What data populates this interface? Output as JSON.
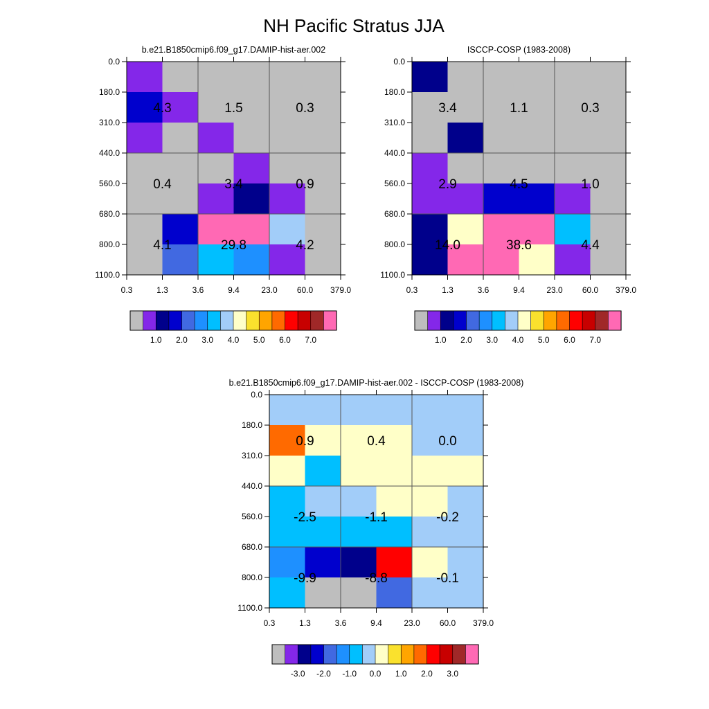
{
  "title": "NH Pacific Stratus JJA",
  "chart_data": [
    {
      "type": "heatmap",
      "id": "model",
      "title": "b.e21.B1850cmip6.f09_g17.DAMIP-hist-aer.002",
      "xlabel": "",
      "ylabel": "",
      "x_ticks": [
        "0.3",
        "1.3",
        "3.6",
        "9.4",
        "23.0",
        "60.0",
        "379.0"
      ],
      "y_ticks": [
        "0.0",
        "180.0",
        "310.0",
        "440.0",
        "560.0",
        "680.0",
        "800.0",
        "1100.0"
      ],
      "cell_colors": [
        [
          "#8427E9",
          "#BEBEBE",
          "#BEBEBE",
          "#BEBEBE",
          "#BEBEBE",
          "#BEBEBE"
        ],
        [
          "#0000CD",
          "#8427E9",
          "#BEBEBE",
          "#BEBEBE",
          "#BEBEBE",
          "#BEBEBE"
        ],
        [
          "#8427E9",
          "#BEBEBE",
          "#8427E9",
          "#BEBEBE",
          "#BEBEBE",
          "#BEBEBE"
        ],
        [
          "#BEBEBE",
          "#BEBEBE",
          "#BEBEBE",
          "#8427E9",
          "#BEBEBE",
          "#BEBEBE"
        ],
        [
          "#BEBEBE",
          "#BEBEBE",
          "#8427E9",
          "#00008B",
          "#8427E9",
          "#BEBEBE"
        ],
        [
          "#BEBEBE",
          "#0000CD",
          "#FF69B4",
          "#FF69B4",
          "#A2CDF9",
          "#BEBEBE"
        ],
        [
          "#BEBEBE",
          "#4169E1",
          "#00BFFF",
          "#1E90FF",
          "#8427E9",
          "#BEBEBE"
        ]
      ],
      "cell_values": [
        {
          "label": "4.3",
          "value": 4.3,
          "x": "0.3-3.6",
          "y": "180.0-440.0"
        },
        {
          "label": "1.5",
          "value": 1.5,
          "x": "3.6-23.0",
          "y": "180.0-440.0"
        },
        {
          "label": "0.3",
          "value": 0.3,
          "x": "23.0-379.0",
          "y": "180.0-440.0"
        },
        {
          "label": "0.4",
          "value": 0.4,
          "x": "0.3-3.6",
          "y": "440.0-680.0"
        },
        {
          "label": "3.4",
          "value": 3.4,
          "x": "3.6-23.0",
          "y": "440.0-680.0"
        },
        {
          "label": "0.9",
          "value": 0.9,
          "x": "23.0-379.0",
          "y": "440.0-680.0"
        },
        {
          "label": "4.1",
          "value": 4.1,
          "x": "0.3-3.6",
          "y": "680.0-1100.0"
        },
        {
          "label": "29.8",
          "value": 29.8,
          "x": "3.6-23.0",
          "y": "680.0-1100.0"
        },
        {
          "label": "4.2",
          "value": 4.2,
          "x": "23.0-379.0",
          "y": "680.0-1100.0"
        }
      ],
      "colorbar": {
        "colors": [
          "#BEBEBE",
          "#8427E9",
          "#00008B",
          "#0000CD",
          "#4169E1",
          "#1E90FF",
          "#00BFFF",
          "#A2CDF9",
          "#FFFFC8",
          "#FAE12D",
          "#FFA500",
          "#FF6A00",
          "#FF0000",
          "#C80000",
          "#A02828",
          "#FF69B4"
        ],
        "labels": [
          "1.0",
          "2.0",
          "3.0",
          "4.0",
          "5.0",
          "6.0",
          "7.0"
        ]
      }
    },
    {
      "type": "heatmap",
      "id": "obs",
      "title": "ISCCP-COSP (1983-2008)",
      "xlabel": "",
      "ylabel": "",
      "x_ticks": [
        "0.3",
        "1.3",
        "3.6",
        "9.4",
        "23.0",
        "60.0",
        "379.0"
      ],
      "y_ticks": [
        "0.0",
        "180.0",
        "310.0",
        "440.0",
        "560.0",
        "680.0",
        "800.0",
        "1100.0"
      ],
      "cell_colors": [
        [
          "#00008B",
          "#BEBEBE",
          "#BEBEBE",
          "#BEBEBE",
          "#BEBEBE",
          "#BEBEBE"
        ],
        [
          "#BEBEBE",
          "#BEBEBE",
          "#BEBEBE",
          "#BEBEBE",
          "#BEBEBE",
          "#BEBEBE"
        ],
        [
          "#BEBEBE",
          "#00008B",
          "#BEBEBE",
          "#BEBEBE",
          "#BEBEBE",
          "#BEBEBE"
        ],
        [
          "#8427E9",
          "#BEBEBE",
          "#BEBEBE",
          "#BEBEBE",
          "#BEBEBE",
          "#BEBEBE"
        ],
        [
          "#8427E9",
          "#8427E9",
          "#0000CD",
          "#0000CD",
          "#8427E9",
          "#BEBEBE"
        ],
        [
          "#00008B",
          "#FFFFC8",
          "#FF69B4",
          "#FF69B4",
          "#00BFFF",
          "#BEBEBE"
        ],
        [
          "#00008B",
          "#FF69B4",
          "#FF69B4",
          "#FFFFC8",
          "#8427E9",
          "#BEBEBE"
        ]
      ],
      "cell_values": [
        {
          "label": "3.4",
          "value": 3.4,
          "x": "0.3-3.6",
          "y": "180.0-440.0"
        },
        {
          "label": "1.1",
          "value": 1.1,
          "x": "3.6-23.0",
          "y": "180.0-440.0"
        },
        {
          "label": "0.3",
          "value": 0.3,
          "x": "23.0-379.0",
          "y": "180.0-440.0"
        },
        {
          "label": "2.9",
          "value": 2.9,
          "x": "0.3-3.6",
          "y": "440.0-680.0"
        },
        {
          "label": "4.5",
          "value": 4.5,
          "x": "3.6-23.0",
          "y": "440.0-680.0"
        },
        {
          "label": "1.0",
          "value": 1.0,
          "x": "23.0-379.0",
          "y": "440.0-680.0"
        },
        {
          "label": "14.0",
          "value": 14.0,
          "x": "0.3-3.6",
          "y": "680.0-1100.0"
        },
        {
          "label": "38.6",
          "value": 38.6,
          "x": "3.6-23.0",
          "y": "680.0-1100.0"
        },
        {
          "label": "4.4",
          "value": 4.4,
          "x": "23.0-379.0",
          "y": "680.0-1100.0"
        }
      ],
      "colorbar": {
        "colors": [
          "#BEBEBE",
          "#8427E9",
          "#00008B",
          "#0000CD",
          "#4169E1",
          "#1E90FF",
          "#00BFFF",
          "#A2CDF9",
          "#FFFFC8",
          "#FAE12D",
          "#FFA500",
          "#FF6A00",
          "#FF0000",
          "#C80000",
          "#A02828",
          "#FF69B4"
        ],
        "labels": [
          "1.0",
          "2.0",
          "3.0",
          "4.0",
          "5.0",
          "6.0",
          "7.0"
        ]
      }
    },
    {
      "type": "heatmap",
      "id": "diff",
      "title": "b.e21.B1850cmip6.f09_g17.DAMIP-hist-aer.002 - ISCCP-COSP (1983-2008)",
      "xlabel": "",
      "ylabel": "",
      "x_ticks": [
        "0.3",
        "1.3",
        "3.6",
        "9.4",
        "23.0",
        "60.0",
        "379.0"
      ],
      "y_ticks": [
        "0.0",
        "180.0",
        "310.0",
        "440.0",
        "560.0",
        "680.0",
        "800.0",
        "1100.0"
      ],
      "cell_colors": [
        [
          "#A2CDF9",
          "#A2CDF9",
          "#A2CDF9",
          "#A2CDF9",
          "#A2CDF9",
          "#A2CDF9"
        ],
        [
          "#FF6A00",
          "#FFFFC8",
          "#FFFFC8",
          "#FFFFC8",
          "#A2CDF9",
          "#A2CDF9"
        ],
        [
          "#FFFFC8",
          "#00BFFF",
          "#FFFFC8",
          "#FFFFC8",
          "#FFFFC8",
          "#FFFFC8"
        ],
        [
          "#00BFFF",
          "#A2CDF9",
          "#A2CDF9",
          "#FFFFC8",
          "#FFFFC8",
          "#A2CDF9"
        ],
        [
          "#00BFFF",
          "#00BFFF",
          "#00BFFF",
          "#00BFFF",
          "#A2CDF9",
          "#A2CDF9"
        ],
        [
          "#1E90FF",
          "#0000CD",
          "#00008B",
          "#FF0000",
          "#FFFFC8",
          "#A2CDF9"
        ],
        [
          "#00BFFF",
          "#BEBEBE",
          "#BEBEBE",
          "#4169E1",
          "#A2CDF9",
          "#A2CDF9"
        ]
      ],
      "cell_values": [
        {
          "label": "0.9",
          "value": 0.9,
          "x": "0.3-3.6",
          "y": "180.0-440.0"
        },
        {
          "label": "0.4",
          "value": 0.4,
          "x": "3.6-23.0",
          "y": "180.0-440.0"
        },
        {
          "label": "0.0",
          "value": 0.0,
          "x": "23.0-379.0",
          "y": "180.0-440.0"
        },
        {
          "label": "-2.5",
          "value": -2.5,
          "x": "0.3-3.6",
          "y": "440.0-680.0"
        },
        {
          "label": "-1.1",
          "value": -1.1,
          "x": "3.6-23.0",
          "y": "440.0-680.0"
        },
        {
          "label": "-0.2",
          "value": -0.2,
          "x": "23.0-379.0",
          "y": "440.0-680.0"
        },
        {
          "label": "-9.9",
          "value": -9.9,
          "x": "0.3-3.6",
          "y": "680.0-1100.0"
        },
        {
          "label": "-8.8",
          "value": -8.8,
          "x": "3.6-23.0",
          "y": "680.0-1100.0"
        },
        {
          "label": "-0.1",
          "value": -0.1,
          "x": "23.0-379.0",
          "y": "680.0-1100.0"
        }
      ],
      "colorbar": {
        "colors": [
          "#BEBEBE",
          "#8427E9",
          "#00008B",
          "#0000CD",
          "#4169E1",
          "#1E90FF",
          "#00BFFF",
          "#A2CDF9",
          "#FFFFC8",
          "#FAE12D",
          "#FFA500",
          "#FF6A00",
          "#FF0000",
          "#C80000",
          "#A02828",
          "#FF69B4"
        ],
        "labels": [
          "-3.0",
          "-2.0",
          "-1.0",
          "0.0",
          "1.0",
          "2.0",
          "3.0"
        ]
      }
    }
  ]
}
